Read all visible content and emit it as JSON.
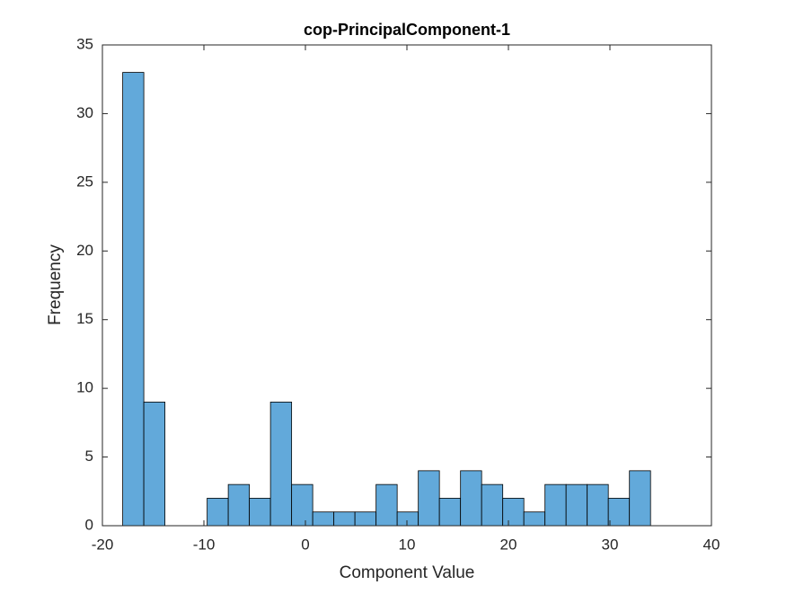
{
  "chart_data": {
    "type": "histogram",
    "title": "cop-PrincipalComponent-1",
    "xlabel": "Component Value",
    "ylabel": "Frequency",
    "bins": [
      -18,
      -15.92,
      -13.84,
      -11.76,
      -9.68,
      -7.6,
      -5.52,
      -3.44,
      -1.36,
      0.72,
      2.8,
      4.88,
      6.96,
      9.04,
      11.12,
      13.2,
      15.28,
      17.36,
      19.44,
      21.52,
      23.6,
      25.68,
      27.76,
      29.84,
      31.92,
      34
    ],
    "values": [
      33,
      9,
      0,
      0,
      2,
      3,
      2,
      9,
      3,
      1,
      1,
      1,
      3,
      1,
      4,
      2,
      4,
      3,
      2,
      1,
      3,
      3,
      3,
      2,
      4
    ],
    "color": "#62a9da",
    "xlim": [
      -20,
      40
    ],
    "xticks": [
      -20,
      -10,
      0,
      10,
      20,
      30,
      40
    ],
    "ylim": [
      0,
      35
    ],
    "yticks": [
      0,
      5,
      10,
      15,
      20,
      25,
      30,
      35
    ]
  }
}
